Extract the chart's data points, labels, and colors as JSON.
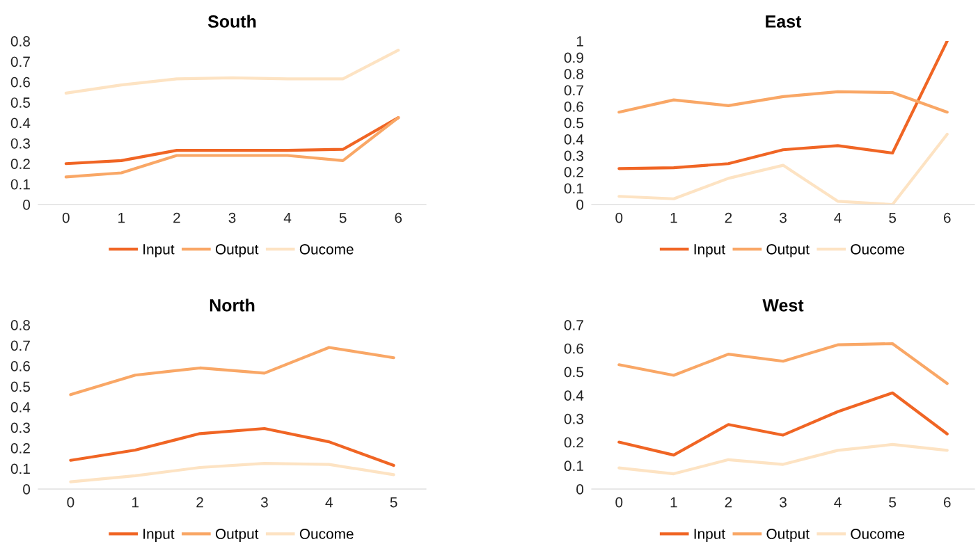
{
  "chart_data": [
    {
      "type": "line",
      "title": "South",
      "categories": [
        "0",
        "1",
        "2",
        "3",
        "4",
        "5",
        "6"
      ],
      "ylim": [
        0,
        0.8
      ],
      "yticks": [
        0,
        0.1,
        0.2,
        0.3,
        0.4,
        0.5,
        0.6,
        0.7,
        0.8
      ],
      "grid": false,
      "legend": "bottom",
      "series": [
        {
          "name": "Input",
          "color": "#f06524",
          "values": [
            0.2,
            0.215,
            0.265,
            0.265,
            0.265,
            0.27,
            0.425
          ]
        },
        {
          "name": "Output",
          "color": "#f9a766",
          "values": [
            0.135,
            0.155,
            0.24,
            0.24,
            0.24,
            0.215,
            0.425
          ]
        },
        {
          "name": "Oucome",
          "color": "#fde3c3",
          "values": [
            0.545,
            0.585,
            0.615,
            0.62,
            0.615,
            0.615,
            0.755
          ]
        }
      ]
    },
    {
      "type": "line",
      "title": "East",
      "categories": [
        "0",
        "1",
        "2",
        "3",
        "4",
        "5",
        "6"
      ],
      "ylim": [
        0,
        1
      ],
      "yticks": [
        0,
        0.1,
        0.2,
        0.3,
        0.4,
        0.5,
        0.6,
        0.7,
        0.8,
        0.9,
        1
      ],
      "grid": false,
      "legend": "bottom",
      "series": [
        {
          "name": "Input",
          "color": "#f06524",
          "values": [
            0.22,
            0.225,
            0.25,
            0.335,
            0.36,
            0.315,
            1.0
          ]
        },
        {
          "name": "Output",
          "color": "#f9a766",
          "values": [
            0.565,
            0.64,
            0.605,
            0.66,
            0.69,
            0.685,
            0.565
          ]
        },
        {
          "name": "Oucome",
          "color": "#fde3c3",
          "values": [
            0.05,
            0.035,
            0.16,
            0.24,
            0.02,
            0.0,
            0.43
          ]
        }
      ]
    },
    {
      "type": "line",
      "title": "North",
      "categories": [
        "0",
        "1",
        "2",
        "3",
        "4",
        "5"
      ],
      "ylim": [
        0,
        0.8
      ],
      "yticks": [
        0,
        0.1,
        0.2,
        0.3,
        0.4,
        0.5,
        0.6,
        0.7,
        0.8
      ],
      "grid": false,
      "legend": "bottom",
      "series": [
        {
          "name": "Input",
          "color": "#f06524",
          "values": [
            0.14,
            0.19,
            0.27,
            0.295,
            0.23,
            0.115
          ]
        },
        {
          "name": "Output",
          "color": "#f9a766",
          "values": [
            0.46,
            0.555,
            0.59,
            0.565,
            0.69,
            0.64
          ]
        },
        {
          "name": "Oucome",
          "color": "#fde3c3",
          "values": [
            0.035,
            0.065,
            0.105,
            0.125,
            0.12,
            0.07
          ]
        }
      ]
    },
    {
      "type": "line",
      "title": "West",
      "categories": [
        "0",
        "1",
        "2",
        "3",
        "4",
        "5",
        "6"
      ],
      "ylim": [
        0,
        0.7
      ],
      "yticks": [
        0,
        0.1,
        0.2,
        0.3,
        0.4,
        0.5,
        0.6,
        0.7
      ],
      "grid": false,
      "legend": "bottom",
      "series": [
        {
          "name": "Input",
          "color": "#f06524",
          "values": [
            0.2,
            0.145,
            0.275,
            0.23,
            0.33,
            0.41,
            0.235
          ]
        },
        {
          "name": "Output",
          "color": "#f9a766",
          "values": [
            0.53,
            0.485,
            0.575,
            0.545,
            0.615,
            0.62,
            0.45
          ]
        },
        {
          "name": "Oucome",
          "color": "#fde3c3",
          "values": [
            0.09,
            0.065,
            0.125,
            0.105,
            0.165,
            0.19,
            0.165
          ]
        }
      ]
    }
  ]
}
